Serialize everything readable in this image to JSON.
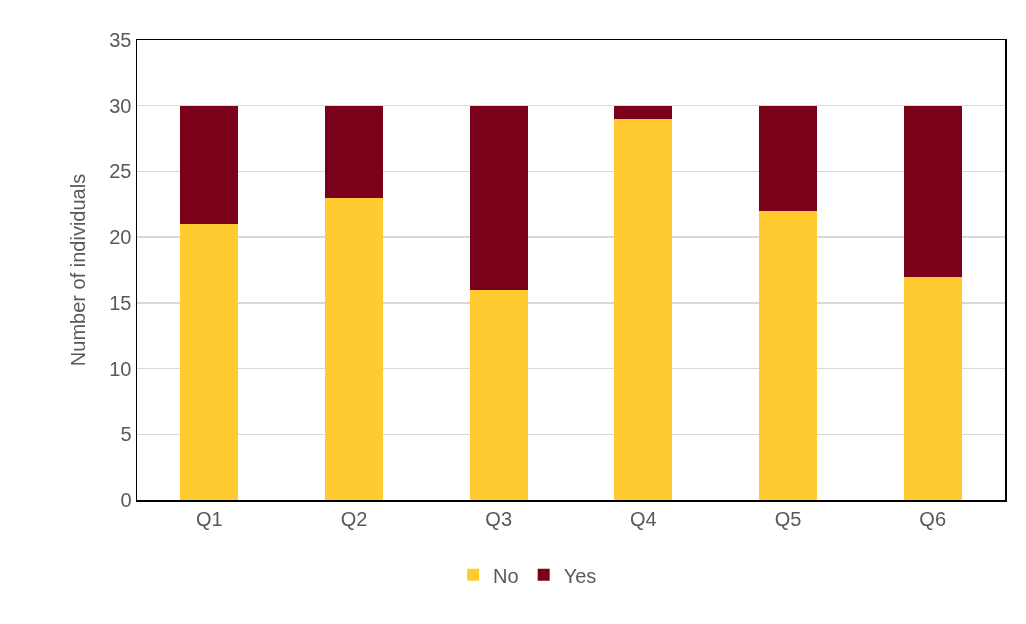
{
  "chart_data": {
    "type": "bar",
    "stacked": true,
    "ylabel": "Number of individuals",
    "categories": [
      "Q1",
      "Q2",
      "Q3",
      "Q4",
      "Q5",
      "Q6"
    ],
    "series": [
      {
        "name": "No",
        "color": "#ffcb31",
        "values": [
          21,
          23,
          16,
          29,
          22,
          17
        ]
      },
      {
        "name": "Yes",
        "color": "#7b0019",
        "values": [
          9,
          7,
          14,
          1,
          8,
          13
        ]
      }
    ],
    "ylim": [
      0,
      35
    ],
    "yticks": [
      0,
      5,
      10,
      15,
      20,
      25,
      30,
      35
    ],
    "grid": "y",
    "legend": "bottom"
  }
}
